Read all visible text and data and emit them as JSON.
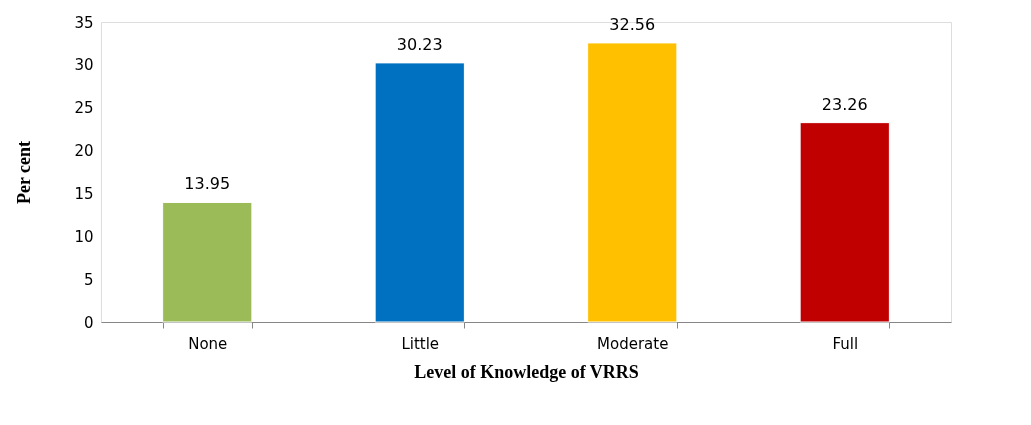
{
  "chart_data": {
    "type": "bar",
    "xlabel": "Level of Knowledge  of  VRRS",
    "ylabel": "Per cent",
    "categories": [
      "None",
      "Little",
      "Moderate",
      "Full"
    ],
    "values": [
      13.95,
      30.23,
      32.56,
      23.26
    ],
    "colors": [
      "#9bbb59",
      "#0070c0",
      "#ffc000",
      "#c00000"
    ],
    "ylim": [
      0,
      35
    ],
    "yticks": [
      0,
      5,
      10,
      15,
      20,
      25,
      30,
      35
    ],
    "grid": false,
    "data_labels": true
  }
}
